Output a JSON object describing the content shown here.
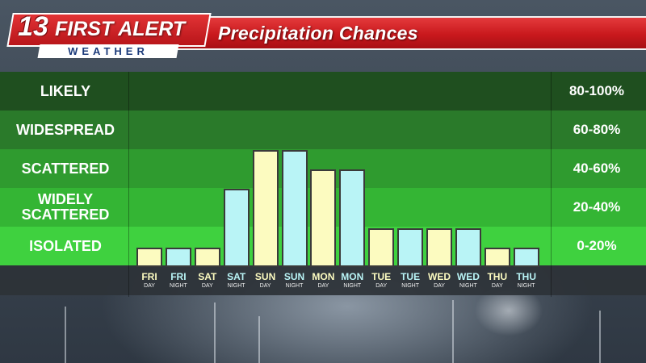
{
  "header": {
    "logo_number": "13",
    "logo_text": "FIRST ALERT",
    "logo_sub": "WEATHER",
    "title": "Precipitation Chances"
  },
  "colors": {
    "day_bar": "#fcfbc0",
    "night_bar": "#b9f4f6",
    "header_red": "#c9191d"
  },
  "chart_data": {
    "type": "bar",
    "title": "Precipitation Chances",
    "ylabel": "",
    "xlabel": "",
    "ylim": [
      0,
      100
    ],
    "y_unit": "percent",
    "bands": [
      {
        "name": "LIKELY",
        "range": "80-100%",
        "min": 80,
        "max": 100,
        "color": "#1f4f1f"
      },
      {
        "name": "WIDESPREAD",
        "range": "60-80%",
        "min": 60,
        "max": 80,
        "color": "#2a7a2a"
      },
      {
        "name": "SCATTERED",
        "range": "40-60%",
        "min": 40,
        "max": 60,
        "color": "#2f9b2f"
      },
      {
        "name": "WIDELY SCATTERED",
        "range": "20-40%",
        "min": 20,
        "max": 40,
        "color": "#34b534"
      },
      {
        "name": "ISOLATED",
        "range": "0-20%",
        "min": 0,
        "max": 20,
        "color": "#3fd13f"
      }
    ],
    "categories": [
      {
        "day": "FRI",
        "period": "DAY",
        "type": "day",
        "value": 10
      },
      {
        "day": "FRI",
        "period": "NIGHT",
        "type": "night",
        "value": 10
      },
      {
        "day": "SAT",
        "period": "DAY",
        "type": "day",
        "value": 10
      },
      {
        "day": "SAT",
        "period": "NIGHT",
        "type": "night",
        "value": 40
      },
      {
        "day": "SUN",
        "period": "DAY",
        "type": "day",
        "value": 60
      },
      {
        "day": "SUN",
        "period": "NIGHT",
        "type": "night",
        "value": 60
      },
      {
        "day": "MON",
        "period": "DAY",
        "type": "day",
        "value": 50
      },
      {
        "day": "MON",
        "period": "NIGHT",
        "type": "night",
        "value": 50
      },
      {
        "day": "TUE",
        "period": "DAY",
        "type": "day",
        "value": 20
      },
      {
        "day": "TUE",
        "period": "NIGHT",
        "type": "night",
        "value": 20
      },
      {
        "day": "WED",
        "period": "DAY",
        "type": "day",
        "value": 20
      },
      {
        "day": "WED",
        "period": "NIGHT",
        "type": "night",
        "value": 20
      },
      {
        "day": "THU",
        "period": "DAY",
        "type": "day",
        "value": 10
      },
      {
        "day": "THU",
        "period": "NIGHT",
        "type": "night",
        "value": 10
      }
    ]
  }
}
